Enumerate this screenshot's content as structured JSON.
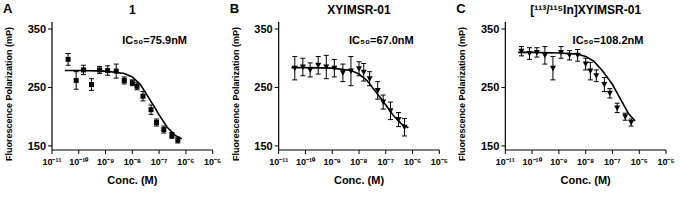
{
  "chart_data": [
    {
      "type": "scatter",
      "panel": "A",
      "title": "1",
      "annotations": [
        "IC₅₀=75.9nM"
      ],
      "x_label": "Conc. (M)",
      "y_label": "Fluorescence Polarization (mP)",
      "log": "x",
      "xlim": [
        1e-11,
        1e-05
      ],
      "ylim": [
        143,
        362
      ],
      "xticks": [
        {
          "value": 1e-11,
          "label": "10⁻¹¹"
        },
        {
          "value": 1e-10,
          "label": "10⁻¹⁰"
        },
        {
          "value": 1e-09,
          "label": "10⁻⁹"
        },
        {
          "value": 1e-08,
          "label": "10⁻⁸"
        },
        {
          "value": 1e-07,
          "label": "10⁻⁷"
        },
        {
          "value": 1e-06,
          "label": "10⁻⁶"
        },
        {
          "value": 1e-05,
          "label": "10⁻⁵"
        }
      ],
      "yticks": [
        150,
        250,
        350
      ],
      "series": [
        {
          "type": "scatter",
          "marker": "square",
          "color": "#000000",
          "x": [
            4e-11,
            8e-11,
            1.5e-10,
            3e-10,
            6e-10,
            1.2e-09,
            2.5e-09,
            5e-09,
            1e-08,
            1.5e-08,
            2.5e-08,
            5e-08,
            8e-08,
            1.5e-07,
            3e-07,
            5e-07
          ],
          "values": [
            298,
            262,
            280,
            255,
            280,
            279,
            278,
            262,
            258,
            252,
            235,
            212,
            190,
            178,
            168,
            160
          ],
          "errors": [
            10,
            15,
            8,
            10,
            6,
            8,
            12,
            6,
            5,
            6,
            8,
            8,
            6,
            6,
            5,
            5
          ]
        },
        {
          "type": "line",
          "line_style": "solid",
          "color": "#000000",
          "x": [
            3e-11,
            1e-10,
            1e-09,
            5e-09,
            1e-08,
            2e-08,
            4e-08,
            7e-08,
            1e-07,
            2e-07,
            4e-07,
            7e-07
          ],
          "values": [
            279,
            279,
            278,
            274,
            268,
            255,
            233,
            215,
            203,
            182,
            168,
            162
          ]
        }
      ]
    },
    {
      "type": "scatter",
      "panel": "B",
      "title": "XYIMSR-01",
      "annotations": [
        "IC₅₀=67.0nM"
      ],
      "x_label": "Conc. (M)",
      "y_label": "Fluorescence Polarization (mP)",
      "log": "x",
      "xlim": [
        1e-11,
        1e-05
      ],
      "ylim": [
        143,
        362
      ],
      "xticks": [
        {
          "value": 1e-11,
          "label": "10⁻¹¹"
        },
        {
          "value": 1e-10,
          "label": "10⁻¹⁰"
        },
        {
          "value": 1e-09,
          "label": "10⁻⁹"
        },
        {
          "value": 1e-08,
          "label": "10⁻⁸"
        },
        {
          "value": 1e-07,
          "label": "10⁻⁷"
        },
        {
          "value": 1e-06,
          "label": "10⁻⁶"
        },
        {
          "value": 1e-05,
          "label": "10⁻⁵"
        }
      ],
      "yticks": [
        150,
        250,
        350
      ],
      "series": [
        {
          "type": "scatter",
          "marker": "triangle-down",
          "color": "#000000",
          "x": [
            4e-11,
            8e-11,
            1.5e-10,
            3e-10,
            6e-10,
            1.2e-09,
            2.5e-09,
            5e-09,
            1e-08,
            1.5e-08,
            2.5e-08,
            5e-08,
            8e-08,
            1.5e-07,
            3e-07,
            5e-07
          ],
          "values": [
            283,
            285,
            280,
            288,
            285,
            283,
            275,
            278,
            282,
            276,
            265,
            245,
            225,
            210,
            195,
            182
          ],
          "errors": [
            20,
            15,
            12,
            15,
            20,
            15,
            15,
            25,
            12,
            15,
            12,
            15,
            12,
            15,
            12,
            15
          ]
        },
        {
          "type": "line",
          "line_style": "solid",
          "color": "#000000",
          "x": [
            3e-11,
            1e-10,
            1e-09,
            5e-09,
            1e-08,
            2e-08,
            4e-08,
            7e-08,
            1e-07,
            2e-07,
            4e-07,
            7e-07
          ],
          "values": [
            284,
            284,
            283,
            279,
            273,
            262,
            244,
            230,
            220,
            201,
            187,
            181
          ]
        }
      ]
    },
    {
      "type": "scatter",
      "panel": "C",
      "title": "[¹¹³/¹¹⁵In]XYIMSR-01",
      "annotations": [
        "IC₅₀=108.2nM"
      ],
      "x_label": "Conc. (M)",
      "y_label": "Fluorescence Polarization (mP)",
      "log": "x",
      "xlim": [
        1e-11,
        1e-05
      ],
      "ylim": [
        143,
        362
      ],
      "xticks": [
        {
          "value": 1e-11,
          "label": "10⁻¹¹"
        },
        {
          "value": 1e-10,
          "label": "10⁻¹⁰"
        },
        {
          "value": 1e-09,
          "label": "10⁻⁹"
        },
        {
          "value": 1e-08,
          "label": "10⁻⁸"
        },
        {
          "value": 1e-07,
          "label": "10⁻⁷"
        },
        {
          "value": 1e-06,
          "label": "10⁻⁶"
        },
        {
          "value": 1e-05,
          "label": "10⁻⁵"
        }
      ],
      "yticks": [
        150,
        250,
        350
      ],
      "series": [
        {
          "type": "scatter",
          "marker": "triangle-down",
          "color": "#000000",
          "x": [
            4e-11,
            8e-11,
            1.5e-10,
            3e-10,
            6e-10,
            1.2e-09,
            2.5e-09,
            5e-09,
            1e-08,
            1.5e-08,
            2.5e-08,
            5e-08,
            8e-08,
            1.5e-07,
            3e-07,
            5e-07
          ],
          "values": [
            312,
            308,
            310,
            305,
            283,
            310,
            305,
            305,
            290,
            278,
            270,
            255,
            240,
            215,
            200,
            190
          ],
          "errors": [
            8,
            10,
            8,
            15,
            20,
            10,
            8,
            10,
            10,
            15,
            10,
            12,
            8,
            8,
            6,
            6
          ]
        },
        {
          "type": "line",
          "line_style": "solid",
          "color": "#000000",
          "x": [
            3e-11,
            1e-10,
            1e-09,
            5e-09,
            1e-08,
            2e-08,
            4e-08,
            7e-08,
            1e-07,
            2e-07,
            4e-07,
            7e-07
          ],
          "values": [
            310,
            310,
            309,
            307,
            303,
            295,
            280,
            265,
            255,
            230,
            205,
            193
          ]
        }
      ]
    }
  ]
}
